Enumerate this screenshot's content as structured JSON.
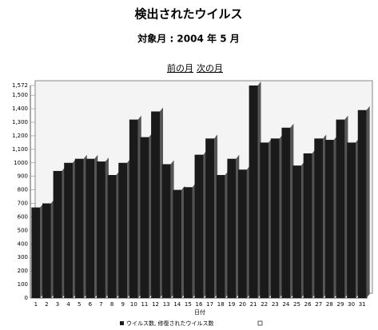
{
  "chart_data": {
    "type": "bar",
    "title": "検出されたウイルス",
    "subtitle": "対象月 : 2004 年 5 月",
    "nav": [
      "前の月",
      "次の月"
    ],
    "x_label": "日付",
    "categories": [
      "1",
      "2",
      "3",
      "4",
      "5",
      "6",
      "7",
      "8",
      "9",
      "10",
      "11",
      "12",
      "13",
      "14",
      "15",
      "16",
      "17",
      "18",
      "19",
      "20",
      "21",
      "22",
      "23",
      "24",
      "25",
      "26",
      "27",
      "28",
      "29",
      "30",
      "31"
    ],
    "series": [
      {
        "name": "ウイルス数, 修復されたウイルス数",
        "color": "#1a1a1a",
        "values": [
          670,
          700,
          940,
          1000,
          1030,
          1030,
          1010,
          910,
          1000,
          1320,
          1190,
          1380,
          990,
          800,
          820,
          1060,
          1180,
          910,
          1030,
          950,
          1572,
          1150,
          1180,
          1260,
          980,
          1070,
          1180,
          1170,
          1320,
          1150,
          1390
        ]
      }
    ],
    "ylim": [
      0,
      1572
    ],
    "yticks": [
      0,
      100,
      200,
      300,
      400,
      500,
      600,
      700,
      800,
      900,
      1000,
      {
        "value": 1100,
        "label": "1,100"
      },
      {
        "value": 1200,
        "label": "1,200"
      },
      {
        "value": 1300,
        "label": "1,300"
      },
      {
        "value": 1400,
        "label": "1,400"
      },
      {
        "value": 1500,
        "label": "1,500"
      },
      {
        "value": 1572,
        "label": "1,572"
      }
    ],
    "grid": true
  }
}
